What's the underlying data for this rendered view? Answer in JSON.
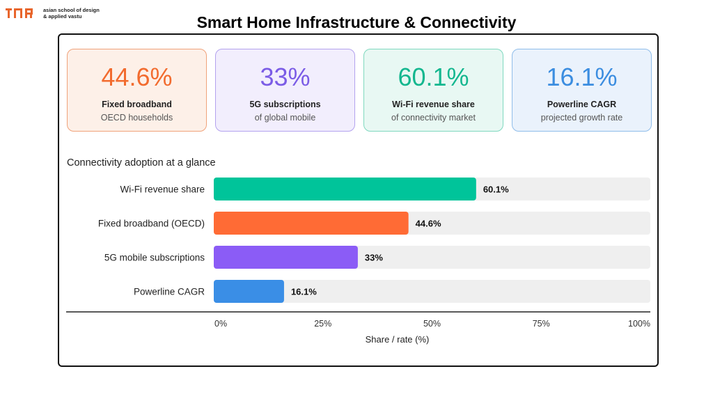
{
  "brand": {
    "line1": "asian school of design",
    "line2": "& applied vastu"
  },
  "page_title": "Smart Home Infrastructure & Connectivity",
  "cards": [
    {
      "value": "44.6%",
      "label": "Fixed broadband",
      "sub": "OECD households",
      "color": "#f26b2e",
      "bg": "#fdf0e8",
      "border": "#f0a27a"
    },
    {
      "value": "33%",
      "label": "5G subscriptions",
      "sub": "of global mobile",
      "color": "#7b5ce6",
      "bg": "#f2eefd",
      "border": "#b3a2ee"
    },
    {
      "value": "60.1%",
      "label": "Wi-Fi revenue share",
      "sub": "of connectivity market",
      "color": "#14b78f",
      "bg": "#e8f8f3",
      "border": "#7fd8bf"
    },
    {
      "value": "16.1%",
      "label": "Powerline CAGR",
      "sub": "projected growth rate",
      "color": "#3b8de0",
      "bg": "#eaf2fc",
      "border": "#8fbdea"
    }
  ],
  "section_title": "Connectivity adoption at a glance",
  "chart_data": {
    "type": "bar",
    "orientation": "horizontal",
    "categories": [
      "Wi-Fi revenue share",
      "Fixed broadband (OECD)",
      "5G mobile subscriptions",
      "Powerline CAGR"
    ],
    "values": [
      60.1,
      44.6,
      33,
      16.1
    ],
    "value_labels": [
      "60.1%",
      "44.6%",
      "33%",
      "16.1%"
    ],
    "colors": [
      "#00c49a",
      "#ff6b35",
      "#8b5cf6",
      "#3a8ee6"
    ],
    "track_color": "#efefef",
    "xlim": [
      0,
      100
    ],
    "xticks": [
      0,
      25,
      50,
      75,
      100
    ],
    "xtick_labels": [
      "0%",
      "25%",
      "50%",
      "75%",
      "100%"
    ],
    "xlabel": "Share / rate (%)",
    "grid": false
  }
}
